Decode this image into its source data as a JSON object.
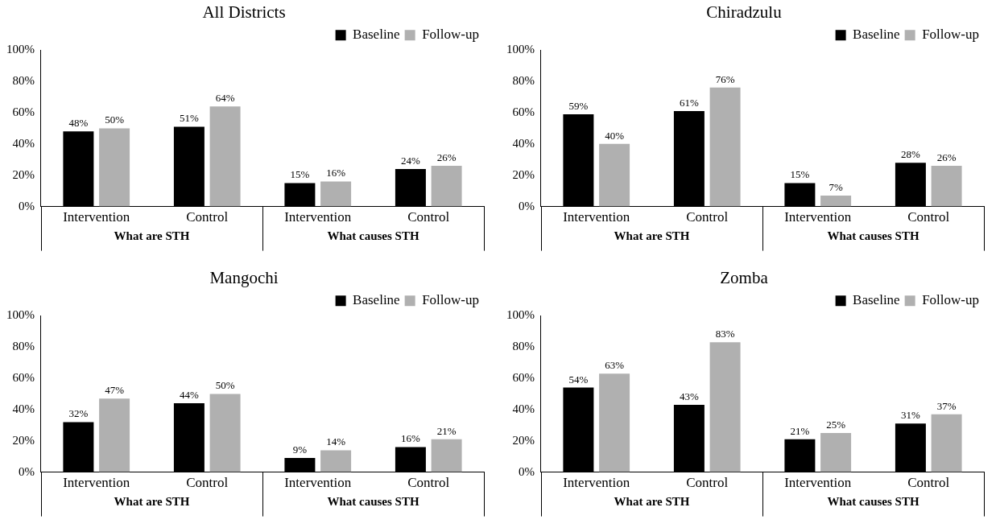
{
  "chart_data": [
    {
      "type": "bar",
      "title": "All Districts",
      "categories": [
        "Intervention",
        "Control",
        "Intervention",
        "Control"
      ],
      "annotations": [
        "What are STH",
        "What causes STH"
      ],
      "ylim": [
        0,
        100
      ],
      "yticks": [
        {
          "value": 0,
          "label": "0%"
        },
        {
          "value": 20,
          "label": "20%"
        },
        {
          "value": 40,
          "label": "40%"
        },
        {
          "value": 60,
          "label": "60%"
        },
        {
          "value": 80,
          "label": "80%"
        },
        {
          "value": 100,
          "label": "100%"
        }
      ],
      "legend": "top right",
      "series": [
        {
          "name": "Baseline",
          "color": "#000000",
          "values": [
            48,
            51,
            15,
            24
          ],
          "value_labels": [
            "48%",
            "51%",
            "15%",
            "24%"
          ]
        },
        {
          "name": "Follow-up",
          "color": "#b0b0b0",
          "values": [
            50,
            64,
            16,
            26
          ],
          "value_labels": [
            "50%",
            "64%",
            "16%",
            "26%"
          ]
        }
      ]
    },
    {
      "type": "bar",
      "title": "Chiradzulu",
      "categories": [
        "Intervention",
        "Control",
        "Intervention",
        "Control"
      ],
      "annotations": [
        "What are STH",
        "What causes STH"
      ],
      "ylim": [
        0,
        100
      ],
      "yticks": [
        {
          "value": 0,
          "label": "0%"
        },
        {
          "value": 20,
          "label": "20%"
        },
        {
          "value": 40,
          "label": "40%"
        },
        {
          "value": 60,
          "label": "60%"
        },
        {
          "value": 80,
          "label": "80%"
        },
        {
          "value": 100,
          "label": "100%"
        }
      ],
      "legend": "top right",
      "series": [
        {
          "name": "Baseline",
          "color": "#000000",
          "values": [
            59,
            61,
            15,
            28
          ],
          "value_labels": [
            "59%",
            "61%",
            "15%",
            "28%"
          ]
        },
        {
          "name": "Follow-up",
          "color": "#b0b0b0",
          "values": [
            40,
            76,
            7,
            26
          ],
          "value_labels": [
            "40%",
            "76%",
            "7%",
            "26%"
          ]
        }
      ]
    },
    {
      "type": "bar",
      "title": "Mangochi",
      "categories": [
        "Intervention",
        "Control",
        "Intervention",
        "Control"
      ],
      "annotations": [
        "What are STH",
        "What causes STH"
      ],
      "ylim": [
        0,
        100
      ],
      "yticks": [
        {
          "value": 0,
          "label": "0%"
        },
        {
          "value": 20,
          "label": "20%"
        },
        {
          "value": 40,
          "label": "40%"
        },
        {
          "value": 60,
          "label": "60%"
        },
        {
          "value": 80,
          "label": "80%"
        },
        {
          "value": 100,
          "label": "100%"
        }
      ],
      "legend": "top right",
      "series": [
        {
          "name": "Baseline",
          "color": "#000000",
          "values": [
            32,
            44,
            9,
            16
          ],
          "value_labels": [
            "32%",
            "44%",
            "9%",
            "16%"
          ]
        },
        {
          "name": "Follow-up",
          "color": "#b0b0b0",
          "values": [
            47,
            50,
            14,
            21
          ],
          "value_labels": [
            "47%",
            "50%",
            "14%",
            "21%"
          ]
        }
      ]
    },
    {
      "type": "bar",
      "title": "Zomba",
      "categories": [
        "Intervention",
        "Control",
        "Intervention",
        "Control"
      ],
      "annotations": [
        "What are STH",
        "What causes STH"
      ],
      "ylim": [
        0,
        100
      ],
      "yticks": [
        {
          "value": 0,
          "label": "0%"
        },
        {
          "value": 20,
          "label": "20%"
        },
        {
          "value": 40,
          "label": "40%"
        },
        {
          "value": 60,
          "label": "60%"
        },
        {
          "value": 80,
          "label": "80%"
        },
        {
          "value": 100,
          "label": "100%"
        }
      ],
      "legend": "top right",
      "series": [
        {
          "name": "Baseline",
          "color": "#000000",
          "values": [
            54,
            43,
            21,
            31
          ],
          "value_labels": [
            "54%",
            "43%",
            "21%",
            "31%"
          ]
        },
        {
          "name": "Follow-up",
          "color": "#b0b0b0",
          "values": [
            63,
            83,
            25,
            37
          ],
          "value_labels": [
            "63%",
            "83%",
            "25%",
            "37%"
          ]
        }
      ]
    }
  ]
}
